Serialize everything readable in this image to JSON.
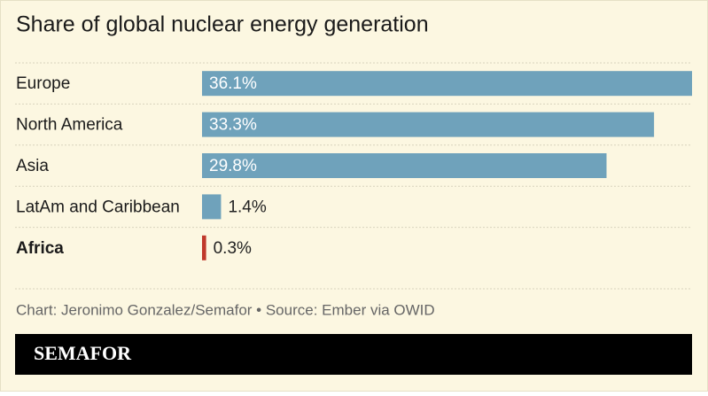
{
  "chart_data": {
    "type": "bar",
    "orientation": "horizontal",
    "title": "Share of global nuclear energy generation",
    "categories": [
      "Europe",
      "North America",
      "Asia",
      "LatAm and Caribbean",
      "Africa"
    ],
    "values": [
      36.1,
      33.3,
      29.8,
      1.4,
      0.3
    ],
    "value_labels": [
      "36.1%",
      "33.3%",
      "29.8%",
      "1.4%",
      "0.3%"
    ],
    "colors": [
      "#6fa2bb",
      "#6fa2bb",
      "#6fa2bb",
      "#6fa2bb",
      "#c0392b"
    ],
    "bold_categories": [
      false,
      false,
      false,
      false,
      true
    ]
  },
  "credit": "Chart: Jeronimo Gonzalez/Semafor • Source: Ember via OWID",
  "logo": "SEMAFOR"
}
